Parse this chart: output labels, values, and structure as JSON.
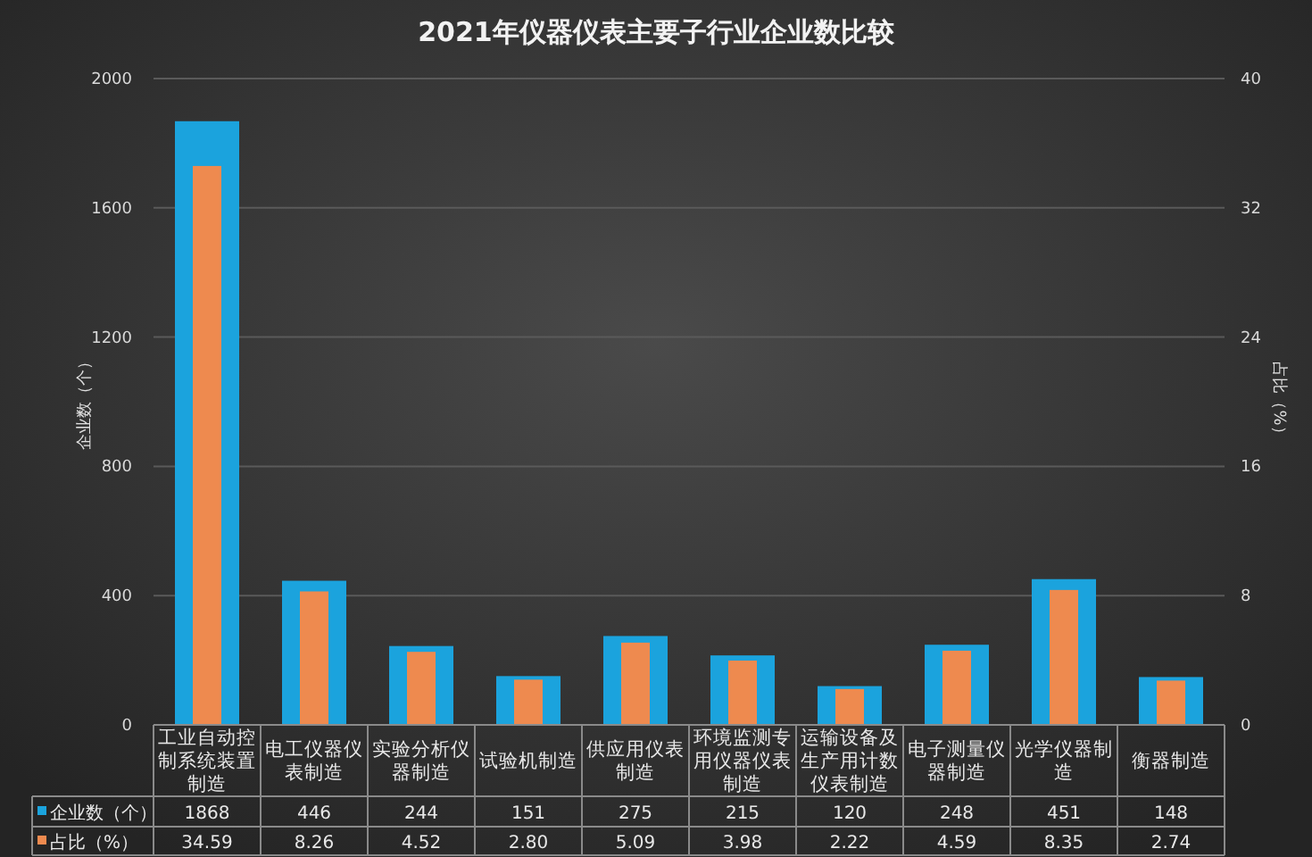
{
  "chart_data": {
    "type": "bar",
    "title": "2021年仪器仪表主要子行业企业数比较",
    "ylabel": "企业数（个）",
    "y2label": "占比（%）",
    "categories": [
      "工业自动控制系统装置制造",
      "电工仪器仪表制造",
      "实验分析仪器制造",
      "试验机制造",
      "供应用仪表制造",
      "环境监测专用仪器仪表制造",
      "运输设备及生产用计数仪表制造",
      "电子测量仪器制造",
      "光学仪器制造",
      "衡器制造"
    ],
    "series": [
      {
        "name": "企业数（个）",
        "color": "#1ba3dd",
        "values": [
          1868,
          446,
          244,
          151,
          275,
          215,
          120,
          248,
          451,
          148
        ],
        "value_labels": [
          "1868",
          "446",
          "244",
          "151",
          "275",
          "215",
          "120",
          "248",
          "451",
          "148"
        ]
      },
      {
        "name": "占比（%）",
        "color": "#ee8a4f",
        "axis": "y2",
        "values": [
          34.59,
          8.26,
          4.52,
          2.8,
          5.09,
          3.98,
          2.22,
          4.59,
          8.35,
          2.74
        ],
        "value_labels": [
          "34.59",
          "8.26",
          "4.52",
          "2.80",
          "5.09",
          "3.98",
          "2.22",
          "4.59",
          "8.35",
          "2.74"
        ]
      }
    ],
    "ylim": [
      0,
      2000
    ],
    "yticks": [
      0,
      400,
      800,
      1200,
      1600,
      2000
    ],
    "y2lim": [
      0,
      40
    ],
    "y2ticks": [
      0,
      8,
      16,
      24,
      32,
      40
    ],
    "grid": "y",
    "legend": "bottom"
  }
}
